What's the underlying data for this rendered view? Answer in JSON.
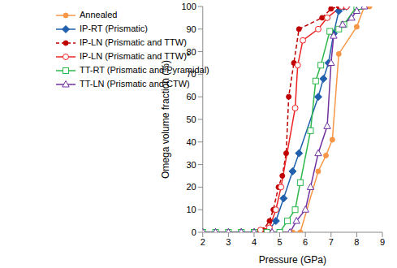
{
  "chart_data": {
    "type": "line",
    "x_label": "Pressure (GPa)",
    "y_label": "Omega volume fraction (%)",
    "xlim": [
      2,
      9
    ],
    "xticks": [
      2,
      3,
      4,
      5,
      6,
      7,
      8,
      9
    ],
    "ylim": [
      0,
      100
    ],
    "yticks": [
      0,
      10,
      20,
      30,
      40,
      50,
      60,
      70,
      80,
      90,
      100
    ],
    "grid": false,
    "legend": "top-left",
    "series": [
      {
        "name": "Annealed",
        "color": "#F79646",
        "marker": "circle",
        "line_style": "solid",
        "x": [
          2,
          2.5,
          3,
          3.5,
          4,
          4.5,
          5,
          5.5,
          5.8,
          6.5,
          6.8,
          7.05,
          7.3,
          8.0,
          8.3,
          8.5
        ],
        "values": [
          0,
          0,
          0,
          0,
          0,
          0,
          0,
          0,
          0,
          27,
          34,
          41,
          79,
          91,
          100,
          100
        ]
      },
      {
        "name": "IP-RT (Prismatic)",
        "color": "#1F5FAD",
        "marker": "diamond",
        "line_style": "solid",
        "x": [
          2,
          2.5,
          3,
          3.5,
          4,
          4.5,
          4.85,
          5.15,
          5.5,
          5.75,
          6.5,
          6.7,
          6.9,
          7.1,
          7.3,
          7.5,
          7.6
        ],
        "values": [
          0,
          0,
          0,
          0,
          0,
          0,
          5,
          15,
          27,
          35,
          60,
          68,
          75,
          88,
          98,
          100,
          100
        ]
      },
      {
        "name": "IP-LN (Prismatic and TTW)",
        "color": "#C00000",
        "marker": "circle",
        "line_style": "dashed",
        "x": [
          2,
          2.5,
          3,
          3.5,
          4,
          4.35,
          4.6,
          4.75,
          4.95,
          5.1,
          5.25,
          5.35,
          5.55,
          5.75,
          6.65,
          7.0,
          7.3,
          7.5
        ],
        "values": [
          0,
          0,
          0,
          0,
          0,
          1,
          5,
          10,
          20,
          25,
          35,
          60,
          75,
          90,
          95,
          99,
          100,
          100
        ]
      },
      {
        "name": "IP-LN (Prismatic and TTW)*",
        "color": "#EE2222",
        "marker": "circle_open",
        "line_style": "solid",
        "x": [
          2,
          2.5,
          3,
          3.5,
          4,
          4.25,
          4.6,
          4.85,
          5.05,
          5.6,
          5.7,
          5.9,
          6.5,
          6.85,
          7.4,
          7.6
        ],
        "values": [
          0,
          0,
          0,
          0,
          0,
          1,
          2,
          10,
          20,
          55,
          74,
          85,
          90,
          95,
          100,
          100
        ]
      },
      {
        "name": "TT-RT (Prismatic and Pyramidal)",
        "color": "#2DB84C",
        "marker": "square_open",
        "line_style": "solid",
        "x": [
          2,
          2.5,
          3,
          3.5,
          4,
          4.5,
          5.0,
          5.3,
          5.6,
          5.8,
          6.2,
          6.4,
          6.6,
          6.95,
          7.3,
          7.5,
          8.0,
          8.1
        ],
        "values": [
          0,
          0,
          0,
          0,
          0,
          0,
          0,
          5,
          10,
          22,
          45,
          67,
          74,
          89,
          90,
          92,
          100,
          100
        ]
      },
      {
        "name": "TT-LN (Prismatic and CTW)",
        "color": "#7030A0",
        "marker": "triangle_open",
        "line_style": "solid",
        "x": [
          2,
          2.5,
          3,
          3.5,
          4,
          4.7,
          5.4,
          5.65,
          6.0,
          6.2,
          6.5,
          6.85,
          7.0,
          7.1,
          7.45,
          7.8,
          8.0,
          8.3
        ],
        "values": [
          0,
          0,
          0,
          0,
          0,
          0,
          0,
          5,
          10,
          20,
          35,
          47,
          75,
          87,
          92,
          95,
          98,
          100
        ]
      }
    ]
  }
}
